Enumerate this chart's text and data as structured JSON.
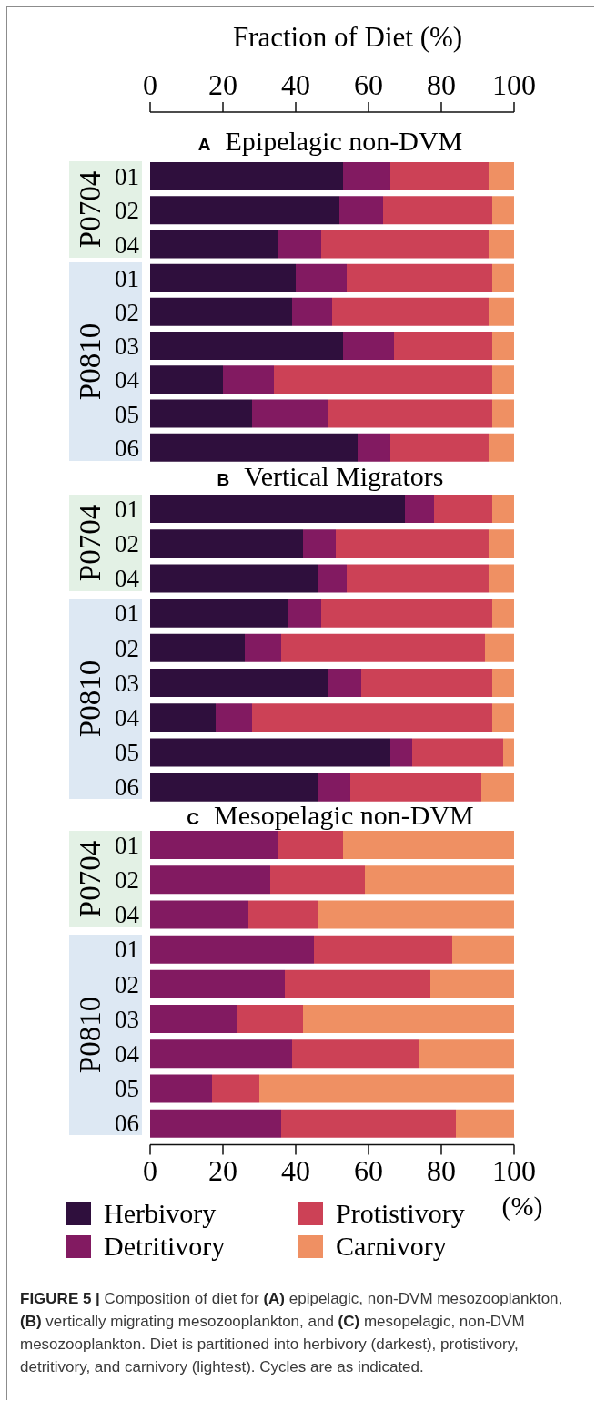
{
  "chart_data": [
    {
      "type": "bar",
      "orientation": "horizontal",
      "stacked": true,
      "title": "A Epipelagic non-DVM",
      "xlabel": "Fraction of Diet (%)",
      "categories": [
        "01",
        "02",
        "04",
        "01",
        "02",
        "03",
        "04",
        "05",
        "06"
      ],
      "annotations": [
        "P0704",
        "P0810"
      ],
      "xlim": [
        0,
        100
      ],
      "xticks": [
        0,
        20,
        40,
        60,
        80,
        100
      ],
      "series": [
        {
          "color": "#2f0f3d",
          "values": [
            53,
            52,
            35,
            40,
            39,
            53,
            20,
            28,
            57
          ]
        },
        {
          "color": "#821a61",
          "values": [
            13,
            12,
            12,
            14,
            11,
            14,
            14,
            21,
            9
          ]
        },
        {
          "color": "#cc4156",
          "values": [
            27,
            30,
            46,
            40,
            43,
            27,
            60,
            45,
            27
          ]
        },
        {
          "color": "#ef9063",
          "values": [
            7,
            6,
            7,
            6,
            7,
            6,
            6,
            6,
            7
          ]
        }
      ]
    },
    {
      "type": "bar",
      "orientation": "horizontal",
      "stacked": true,
      "title": "B Vertical Migrators",
      "tick_labels": "y",
      "categories": [
        "01",
        "02",
        "04",
        "01",
        "02",
        "03",
        "04",
        "05",
        "06"
      ],
      "annotations": [
        "P0704",
        "P0810"
      ],
      "xlim": [
        0,
        100
      ],
      "series": [
        {
          "color": "#2f0f3d",
          "values": [
            70,
            42,
            46,
            38,
            26,
            49,
            18,
            66,
            46
          ]
        },
        {
          "color": "#821a61",
          "values": [
            8,
            9,
            8,
            9,
            10,
            9,
            10,
            6,
            9
          ]
        },
        {
          "color": "#cc4156",
          "values": [
            16,
            42,
            39,
            47,
            56,
            36,
            66,
            25,
            36
          ]
        },
        {
          "color": "#ef9063",
          "values": [
            6,
            7,
            7,
            6,
            8,
            6,
            6,
            3,
            9
          ]
        }
      ]
    },
    {
      "type": "bar",
      "orientation": "horizontal",
      "stacked": true,
      "title": "C Mesopelagic non-DVM",
      "xlabel": "(%)",
      "categories": [
        "01",
        "02",
        "04",
        "01",
        "02",
        "03",
        "04",
        "05",
        "06"
      ],
      "annotations": [
        "P0704",
        "P0810",
        "FIGURE 5 | Composition of diet for (A) epipelagic, non-DVM mesozooplankton, (B) vertically migrating mesozooplankton, and (C) mesopelagic, non-DVM mesozooplankton. Diet is partitioned into herbivory (darkest), protistivory, detritivory, and carnivory (lightest). Cycles are as indicated."
      ],
      "xlim": [
        0,
        100
      ],
      "xticks": [
        0,
        20,
        40,
        60,
        80,
        100
      ],
      "legend": "bottom",
      "series": [
        {
          "name": "Herbivory",
          "color": "#2f0f3d",
          "values": [
            0,
            0,
            0,
            0,
            0,
            0,
            0,
            0,
            0
          ]
        },
        {
          "name": "Detritivory",
          "color": "#821a61",
          "values": [
            35,
            33,
            27,
            45,
            37,
            24,
            39,
            17,
            36
          ]
        },
        {
          "name": "Protistivory",
          "color": "#cc4156",
          "values": [
            18,
            26,
            19,
            38,
            40,
            18,
            35,
            13,
            48
          ]
        },
        {
          "name": "Carnivory",
          "color": "#ef9063",
          "values": [
            47,
            41,
            54,
            17,
            23,
            58,
            26,
            70,
            16
          ]
        }
      ]
    }
  ]
}
